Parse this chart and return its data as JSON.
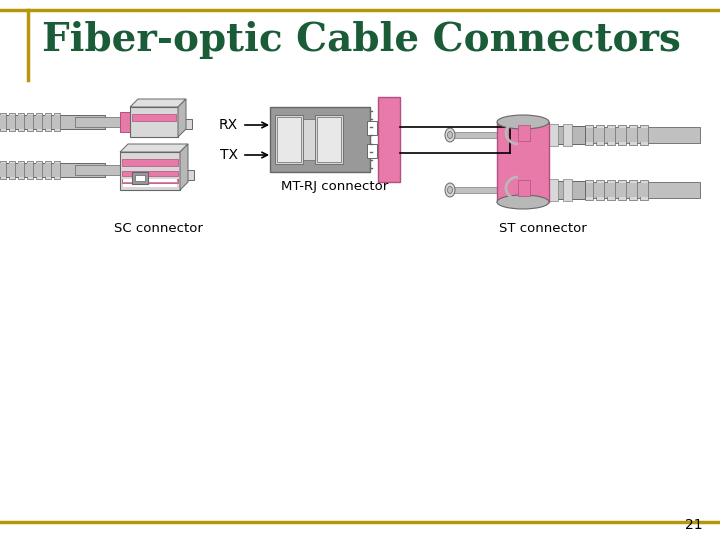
{
  "title": "Fiber-optic Cable Connectors",
  "title_color": "#1a5c38",
  "title_fontsize": 28,
  "page_number": "21",
  "background_color": "#ffffff",
  "border_color": "#b8960c",
  "left_bar_color": "#b8960c",
  "sc_label": "SC connector",
  "st_label": "ST connector",
  "mt_label": "MT-RJ connector",
  "rx_label": "RX",
  "tx_label": "TX",
  "pink_color": "#e87aaa",
  "gray_color": "#b8b8b8",
  "dark_gray": "#666666",
  "light_gray": "#d8d8d8",
  "mid_gray": "#999999",
  "cable_color": "#c0c0c0",
  "white": "#ffffff"
}
